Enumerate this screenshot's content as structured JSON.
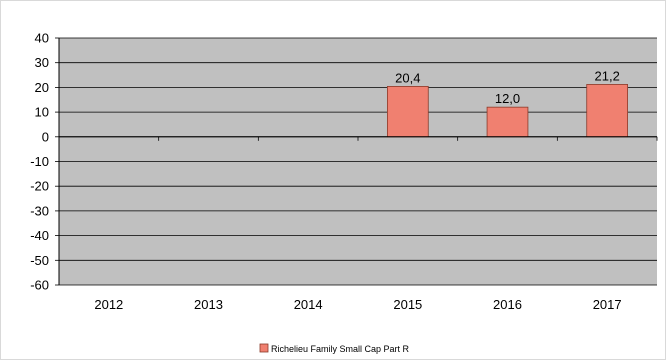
{
  "chart_data": {
    "type": "bar",
    "categories": [
      "2012",
      "2013",
      "2014",
      "2015",
      "2016",
      "2017"
    ],
    "series": [
      {
        "name": "Richelieu Family Small Cap Part R",
        "values": [
          null,
          null,
          null,
          20.4,
          12.0,
          21.2
        ],
        "data_labels": [
          "",
          "",
          "",
          "20,4",
          "12,0",
          "21,2"
        ],
        "color": "#f08070"
      }
    ],
    "ylim": [
      -60,
      40
    ],
    "yticks": [
      "40",
      "30",
      "20",
      "10",
      "0",
      "-10",
      "-20",
      "-30",
      "-40",
      "-50",
      "-60"
    ],
    "title": "",
    "xlabel": "",
    "ylabel": "",
    "grid": true,
    "legend_position": "bottom",
    "plot_background": "#c0c0c0"
  }
}
